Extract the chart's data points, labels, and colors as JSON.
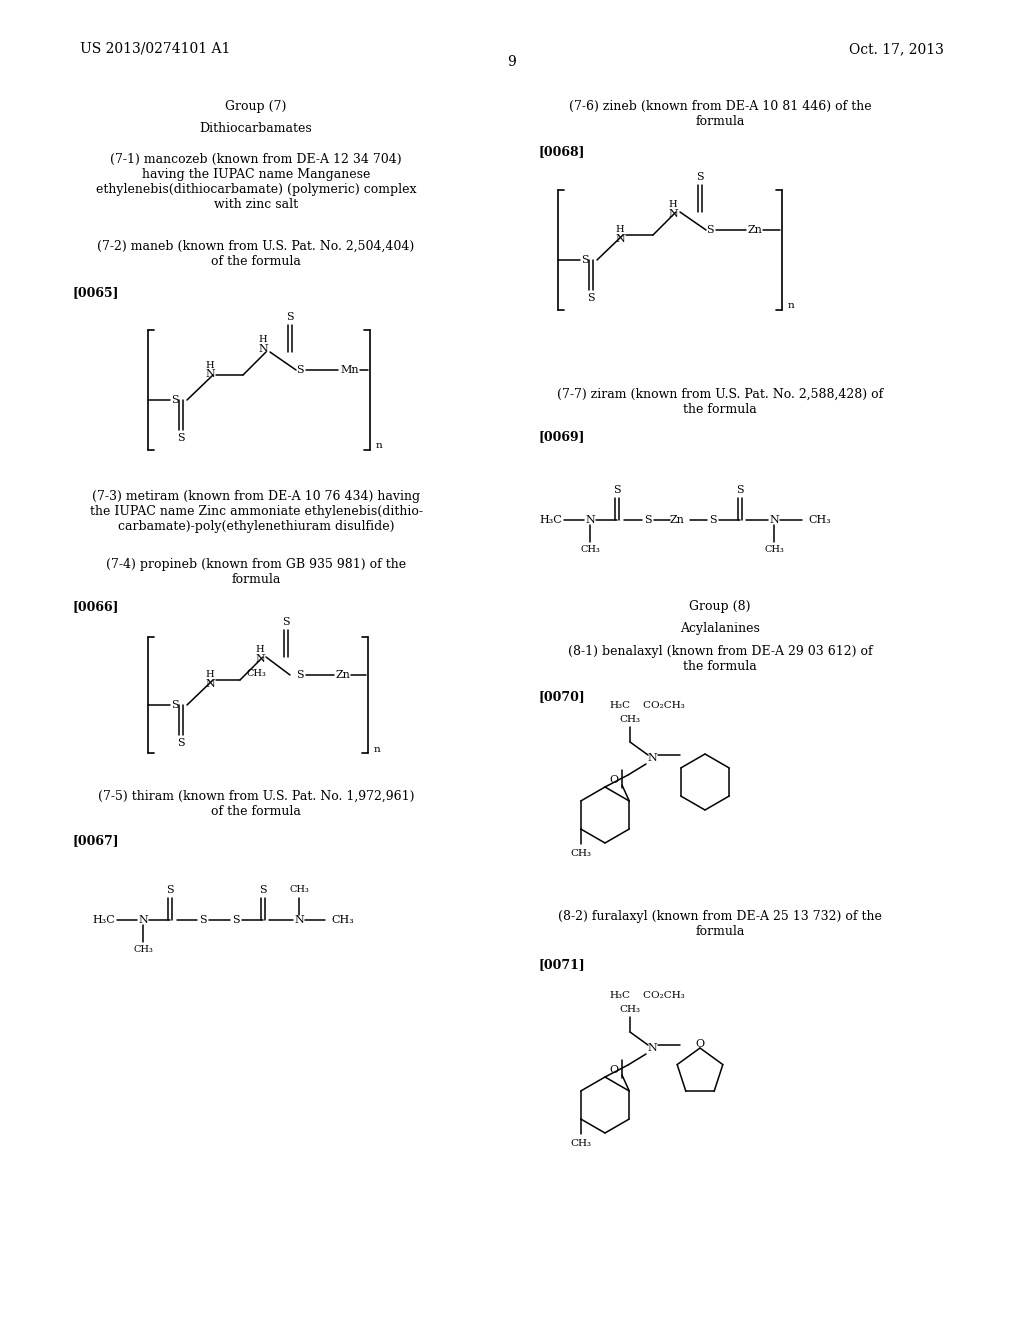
{
  "page_number": "9",
  "patent_number": "US 2013/0274101 A1",
  "patent_date": "Oct. 17, 2013",
  "background_color": "#ffffff",
  "text_color": "#000000"
}
